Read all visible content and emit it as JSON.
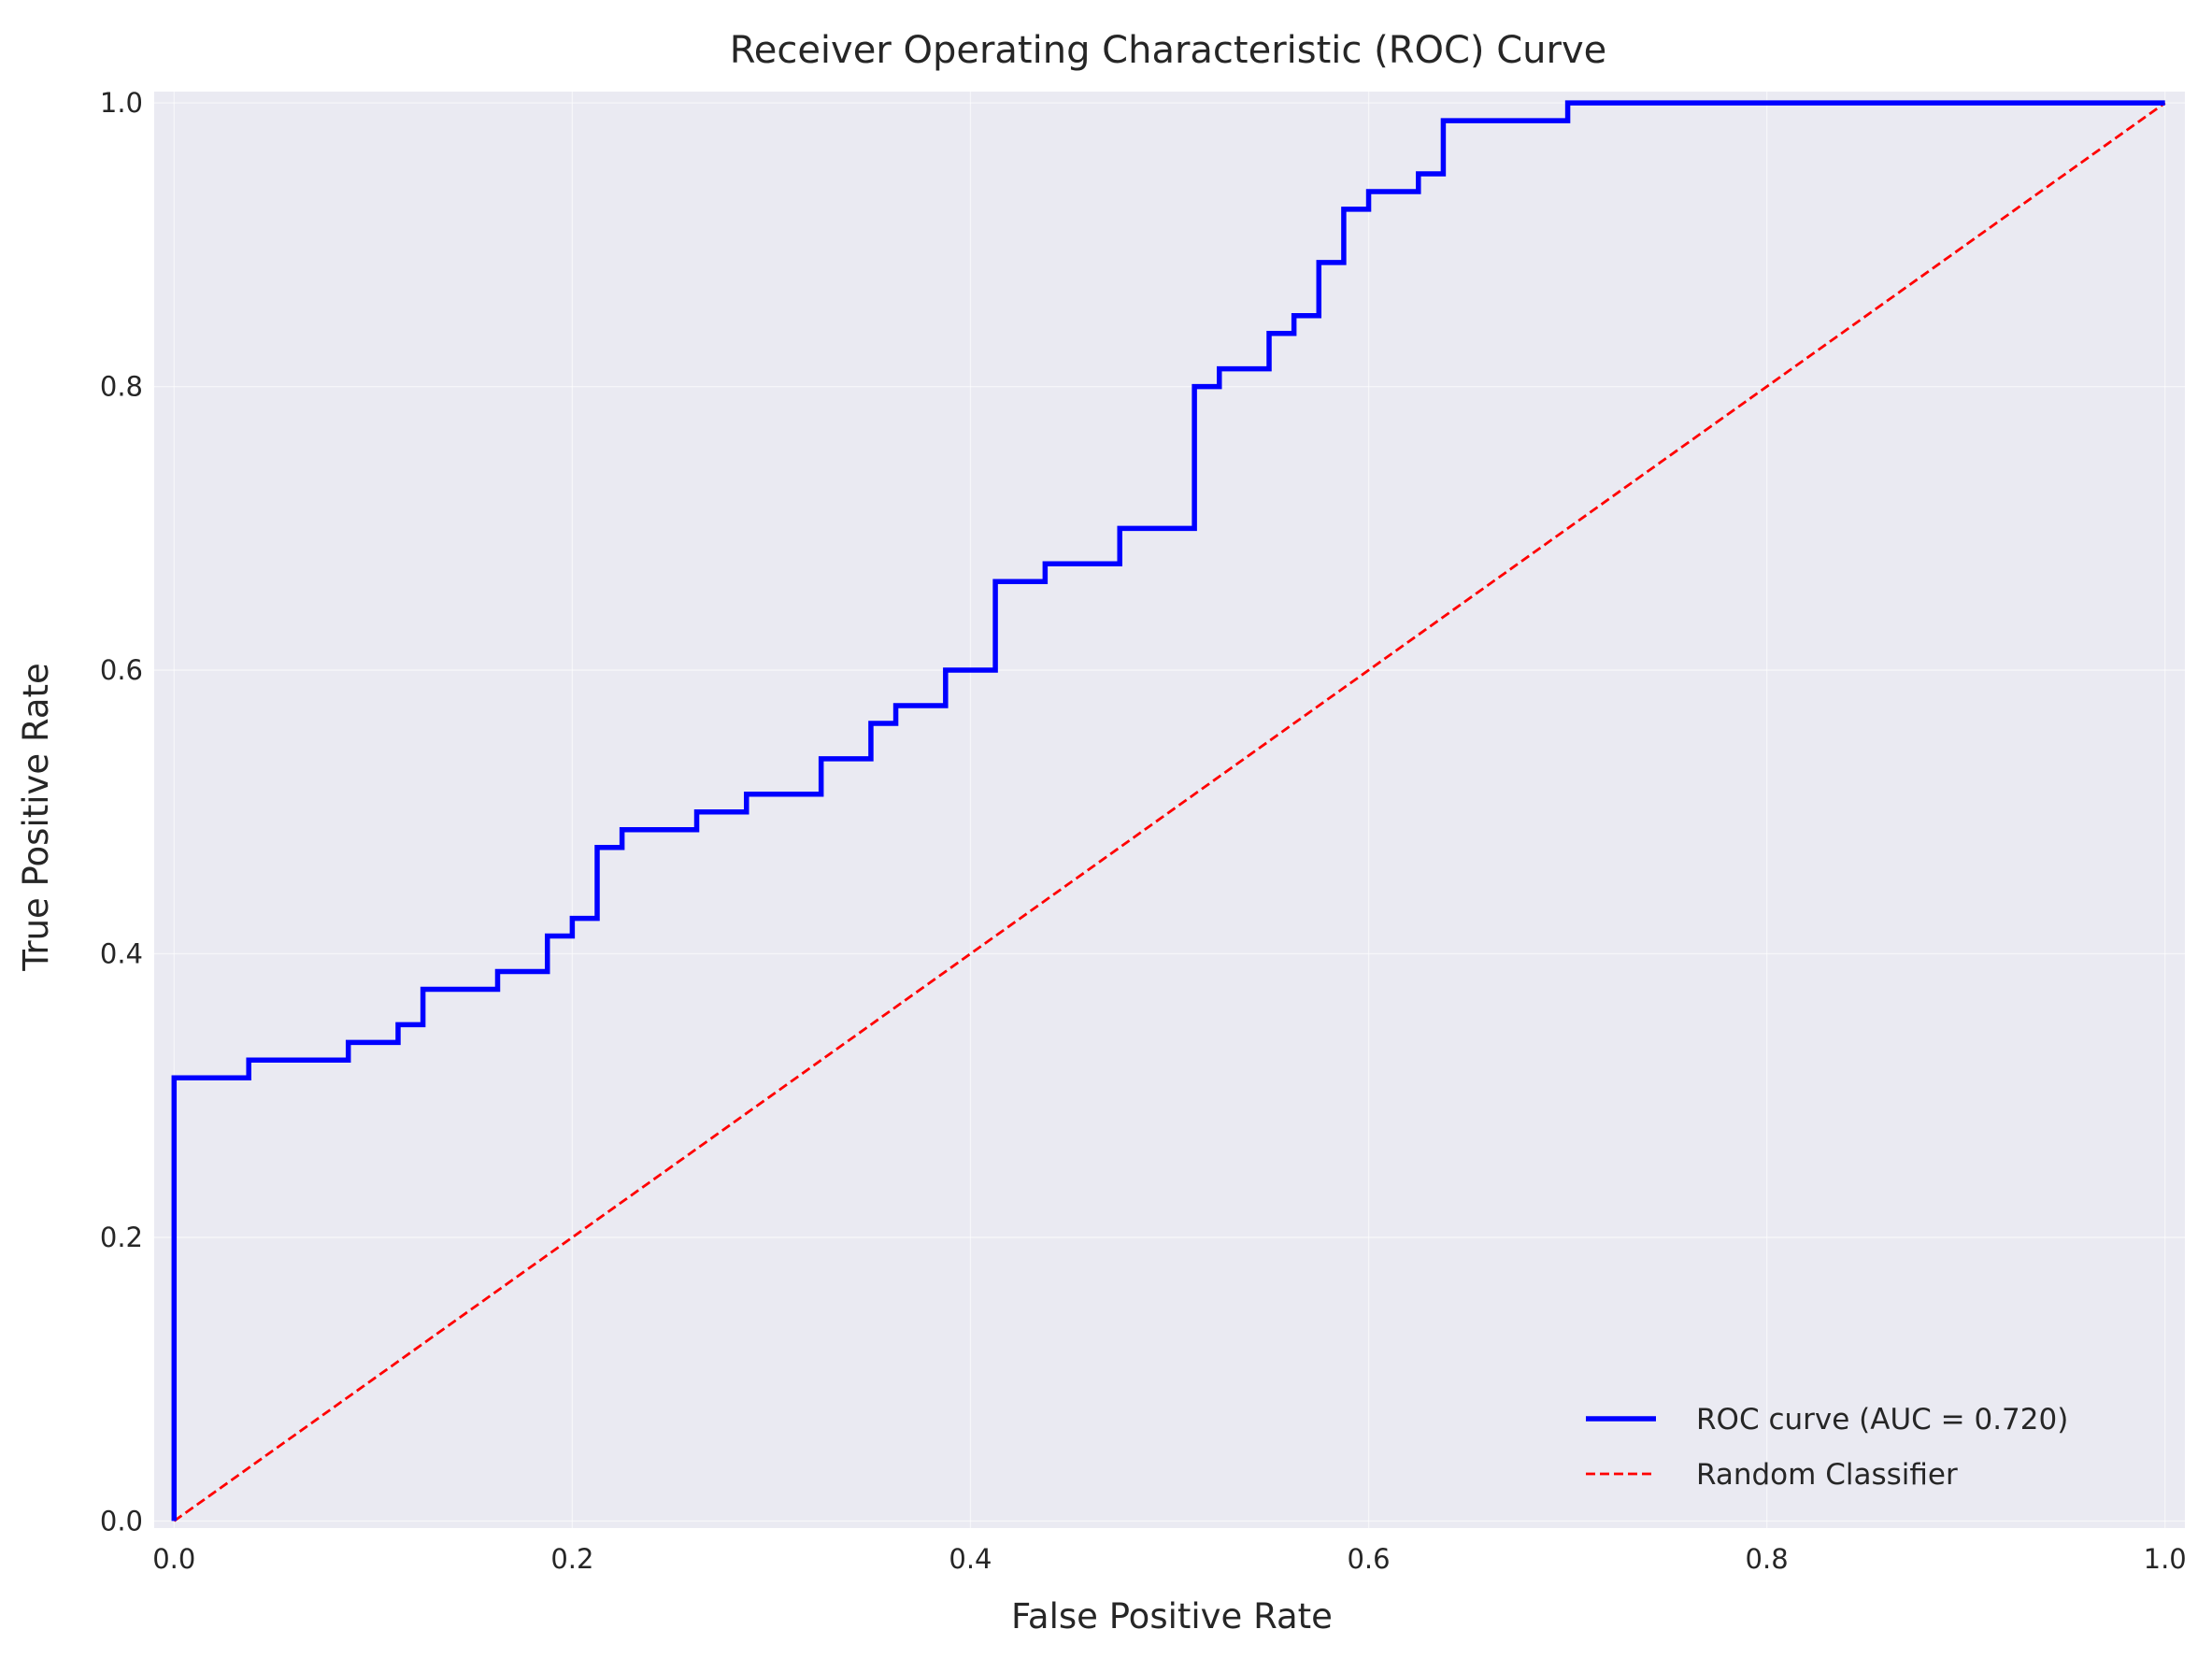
{
  "chart_data": {
    "type": "line",
    "title": "Receiver Operating Characteristic (ROC) Curve",
    "xlabel": "False Positive Rate",
    "ylabel": "True Positive Rate",
    "xlim": [
      -0.01,
      1.01
    ],
    "ylim": [
      -0.005,
      1.008
    ],
    "xticks": [
      0.0,
      0.2,
      0.4,
      0.6,
      0.8,
      1.0
    ],
    "yticks": [
      0.0,
      0.2,
      0.4,
      0.6,
      0.8,
      1.0
    ],
    "xtick_labels": [
      "0.0",
      "0.2",
      "0.4",
      "0.6",
      "0.8",
      "1.0"
    ],
    "ytick_labels": [
      "0.0",
      "0.2",
      "0.4",
      "0.6",
      "0.8",
      "1.0"
    ],
    "grid": true,
    "background_color": "#eaeaf2",
    "legend_position": "lower-right",
    "series": [
      {
        "name": "ROC curve (AUC = 0.720)",
        "color": "#0000ff",
        "style": "solid-step",
        "x": [
          0.0,
          0.0,
          0.0375,
          0.0375,
          0.0875,
          0.0875,
          0.1125,
          0.1125,
          0.125,
          0.125,
          0.1625,
          0.1625,
          0.1875,
          0.1875,
          0.2,
          0.2,
          0.2125,
          0.2125,
          0.225,
          0.225,
          0.2625,
          0.2625,
          0.2875,
          0.2875,
          0.325,
          0.325,
          0.35,
          0.35,
          0.3625,
          0.3625,
          0.3875,
          0.3875,
          0.4125,
          0.4125,
          0.4375,
          0.4375,
          0.475,
          0.475,
          0.5125,
          0.5125,
          0.525,
          0.525,
          0.55,
          0.55,
          0.5625,
          0.5625,
          0.575,
          0.575,
          0.5875,
          0.5875,
          0.6,
          0.6,
          0.625,
          0.625,
          0.6375,
          0.6375,
          0.7,
          0.7,
          1.0
        ],
        "y": [
          0.0,
          0.3125,
          0.3125,
          0.325,
          0.325,
          0.3375,
          0.3375,
          0.35,
          0.35,
          0.375,
          0.375,
          0.3875,
          0.3875,
          0.4125,
          0.4125,
          0.425,
          0.425,
          0.475,
          0.475,
          0.4875,
          0.4875,
          0.5,
          0.5,
          0.5125,
          0.5125,
          0.5375,
          0.5375,
          0.5625,
          0.5625,
          0.575,
          0.575,
          0.6,
          0.6,
          0.6625,
          0.6625,
          0.675,
          0.675,
          0.7,
          0.7,
          0.8,
          0.8,
          0.8125,
          0.8125,
          0.8375,
          0.8375,
          0.85,
          0.85,
          0.8875,
          0.8875,
          0.925,
          0.925,
          0.9375,
          0.9375,
          0.95,
          0.95,
          0.9875,
          0.9875,
          1.0,
          1.0
        ]
      },
      {
        "name": "Random Classifier",
        "color": "#ff0000",
        "style": "dashed",
        "x": [
          0.0,
          1.0
        ],
        "y": [
          0.0,
          1.0
        ]
      }
    ]
  }
}
